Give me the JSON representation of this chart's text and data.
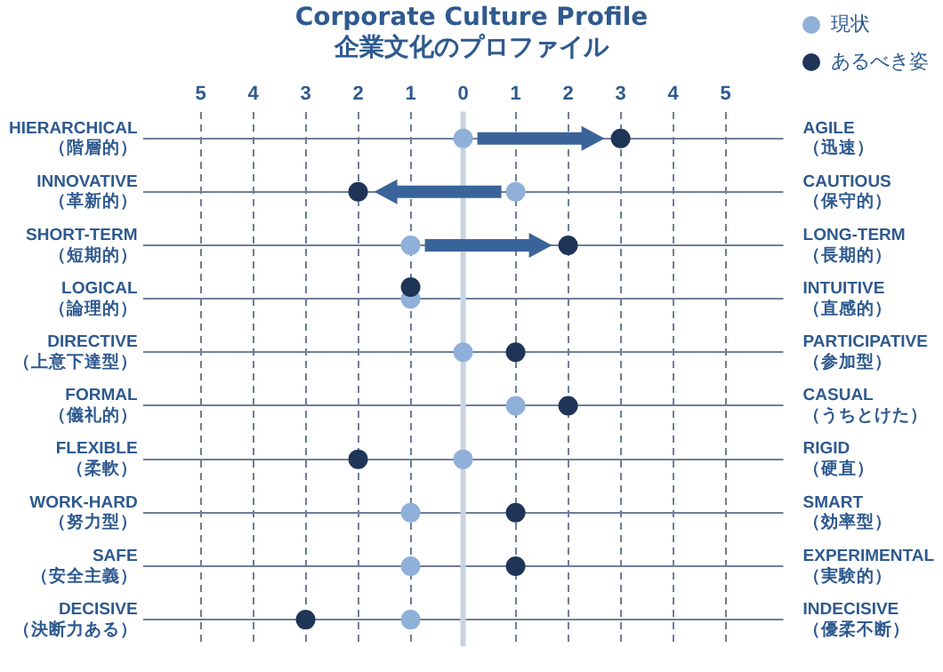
{
  "chart_data": {
    "type": "scatter",
    "title": "Corporate Culture Profile",
    "subtitle": "企業文化のプロファイル",
    "categories": [
      "HIERARCHICAL\n（階層的）",
      "INNOVATIVE\n（革新的）",
      "SHORT-TERM\n（短期的）",
      "LOGICAL\n（論理的）",
      "DIRECTIVE\n（上意下達型）",
      "FORMAL\n（儀礼的）",
      "FLEXIBLE\n（柔軟）",
      "WORK-HARD\n（努力型）",
      "SAFE\n（安全主義）",
      "DECISIVE\n（決断力ある）"
    ],
    "y2_categories": [
      "AGILE\n（迅速）",
      "CAUTIOUS\n（保守的）",
      "LONG-TERM\n（長期的）",
      "INTUITIVE\n（直感的）",
      "PARTICIPATIVE\n（参加型）",
      "CASUAL\n（うちとけた）",
      "RIGID\n（硬直）",
      "SMART\n（効率型）",
      "EXPERIMENTAL\n（実験的）",
      "INDECISIVE\n（優柔不断）"
    ],
    "series": [
      {
        "name": "現状",
        "color": "#8fb0d9",
        "values": [
          0,
          1,
          -1,
          -1,
          0,
          1,
          0,
          -1,
          -1,
          -1
        ]
      },
      {
        "name": "あるべき姿",
        "color": "#1f3557",
        "values": [
          3,
          -2,
          2,
          -1,
          1,
          2,
          -2,
          1,
          1,
          -3
        ]
      }
    ],
    "xlim": [
      -6.1,
      6.1
    ],
    "orientation": "horizontal",
    "xticks": [
      {
        "value": -5,
        "label": "5"
      },
      {
        "value": -4,
        "label": "4"
      },
      {
        "value": -3,
        "label": "3"
      },
      {
        "value": -2,
        "label": "2"
      },
      {
        "value": -1,
        "label": "1"
      },
      {
        "value": 0,
        "label": "0"
      },
      {
        "value": 1,
        "label": "1"
      },
      {
        "value": 2,
        "label": "2"
      },
      {
        "value": 3,
        "label": "3"
      },
      {
        "value": 4,
        "label": "4"
      },
      {
        "value": 5,
        "label": "5"
      }
    ],
    "ref_lines": [
      {
        "axis": "x",
        "value": 0,
        "color": "#c9d3e0"
      }
    ],
    "grid": true,
    "legend": "top right",
    "marker": "circle"
  }
}
